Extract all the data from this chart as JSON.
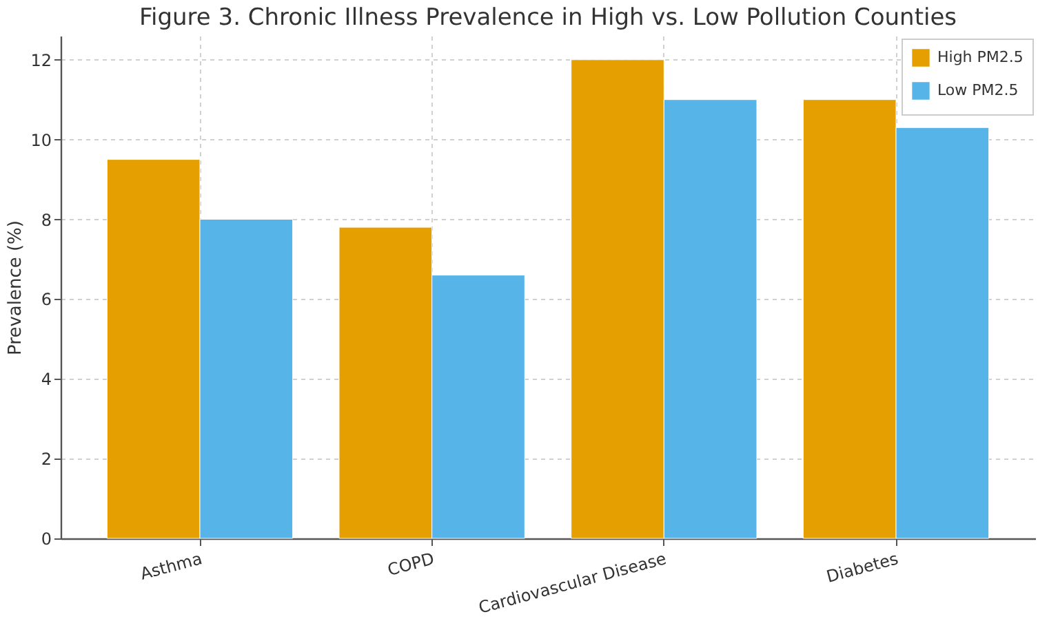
{
  "chart_data": {
    "type": "bar",
    "title": "Figure 3. Chronic Illness Prevalence in High vs. Low Pollution Counties",
    "ylabel": "Prevalence (%)",
    "categories": [
      "Asthma",
      "COPD",
      "Cardiovascular Disease",
      "Diabetes"
    ],
    "series": [
      {
        "name": "High PM2.5",
        "color": "#e69f00",
        "values": [
          9.5,
          7.8,
          12.0,
          11.0
        ]
      },
      {
        "name": "Low PM2.5",
        "color": "#56b4e9",
        "values": [
          8.0,
          6.6,
          11.0,
          10.3
        ]
      }
    ],
    "ylim": [
      0,
      12.6
    ],
    "yticks": [
      0,
      2,
      4,
      6,
      8,
      10,
      12
    ],
    "grid": true,
    "legend": "top right"
  }
}
